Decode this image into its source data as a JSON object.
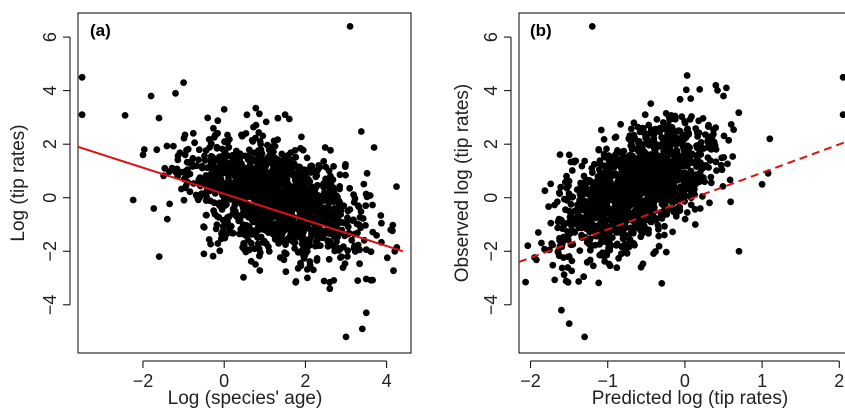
{
  "chart_data": [
    {
      "type": "scatter",
      "panel_label": "(a)",
      "xlabel": "Log (species' age)",
      "ylabel": "Log (tip rates)",
      "xlim": [
        -3.6,
        4.6
      ],
      "ylim": [
        -5.8,
        6.9
      ],
      "xticks": [
        -2,
        0,
        2,
        4
      ],
      "yticks": [
        -4,
        -2,
        0,
        2,
        4,
        6
      ],
      "xtick_labels": [
        "−2",
        "0",
        "2",
        "4"
      ],
      "ytick_labels": [
        "−4",
        "−2",
        "0",
        "2",
        "4",
        "6"
      ],
      "grid": false,
      "point_color": "#000000",
      "cloud": {
        "n": 1400,
        "x_center": 1.2,
        "x_sd": 1.05,
        "intercept": 0.0,
        "slope": -0.45,
        "resid_sd": 1.0
      },
      "points": [
        {
          "x": 3.1,
          "y": 6.4
        },
        {
          "x": -3.5,
          "y": 4.5
        },
        {
          "x": -3.5,
          "y": 3.1
        },
        {
          "x": -1.0,
          "y": 4.3
        },
        {
          "x": -1.2,
          "y": 3.9
        },
        {
          "x": 3.0,
          "y": -5.2
        },
        {
          "x": 3.4,
          "y": -4.9
        },
        {
          "x": 3.5,
          "y": -4.3
        },
        {
          "x": -1.6,
          "y": -2.2
        },
        {
          "x": -2.0,
          "y": 1.6
        },
        {
          "x": -1.8,
          "y": 3.8
        },
        {
          "x": 0.0,
          "y": 3.3
        },
        {
          "x": -1.4,
          "y": -0.8
        },
        {
          "x": -0.5,
          "y": -2.1
        },
        {
          "x": 2.6,
          "y": -3.4
        },
        {
          "x": 4.1,
          "y": -1.2
        },
        {
          "x": 4.2,
          "y": -2.0
        },
        {
          "x": 1.5,
          "y": 3.1
        }
      ],
      "fit_line": {
        "x": [
          -3.6,
          4.4
        ],
        "y": [
          1.9,
          -2.0
        ],
        "color": "#dd1111",
        "style": "solid"
      }
    },
    {
      "type": "scatter",
      "panel_label": "(b)",
      "xlabel": "Predicted log (tip rates)",
      "ylabel": "Observed log (tip rates)",
      "xlim": [
        -2.15,
        2.1
      ],
      "ylim": [
        -5.8,
        6.9
      ],
      "xticks": [
        -2,
        -1,
        0,
        1,
        2
      ],
      "yticks": [
        -4,
        -2,
        0,
        2,
        4,
        6
      ],
      "xtick_labels": [
        "−2",
        "−1",
        "0",
        "1",
        "2"
      ],
      "ytick_labels": [
        "−4",
        "−2",
        "0",
        "2",
        "4",
        "6"
      ],
      "grid": false,
      "point_color": "#000000",
      "cloud": {
        "n": 1400,
        "x_center": -0.65,
        "x_sd": 0.5,
        "intercept": 0.3,
        "slope": 1.3,
        "resid_sd": 1.0
      },
      "points": [
        {
          "x": -1.2,
          "y": 6.4
        },
        {
          "x": 2.05,
          "y": 4.5
        },
        {
          "x": 2.05,
          "y": 3.1
        },
        {
          "x": -1.5,
          "y": -4.7
        },
        {
          "x": -1.3,
          "y": -5.2
        },
        {
          "x": -1.6,
          "y": -4.2
        },
        {
          "x": 0.4,
          "y": 4.2
        },
        {
          "x": 0.5,
          "y": 3.8
        },
        {
          "x": 1.1,
          "y": 2.2
        },
        {
          "x": -1.9,
          "y": -1.3
        },
        {
          "x": -1.5,
          "y": 1.6
        },
        {
          "x": 0.7,
          "y": -2.0
        },
        {
          "x": 1.0,
          "y": 0.5
        },
        {
          "x": -0.3,
          "y": -3.2
        }
      ],
      "fit_line": {
        "x": [
          -2.15,
          2.1
        ],
        "y": [
          -2.4,
          2.1
        ],
        "color": "#dd1111",
        "style": "dashed"
      }
    }
  ]
}
